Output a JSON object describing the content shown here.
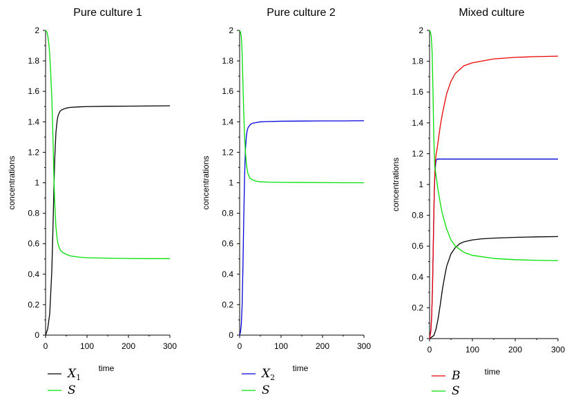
{
  "chart_data": [
    {
      "type": "line",
      "title": "Pure culture 1",
      "xlabel": "time",
      "ylabel": "concentrations",
      "xlim": [
        0,
        300
      ],
      "ylim": [
        0,
        2
      ],
      "xticks": [
        "0",
        "100",
        "200",
        "300"
      ],
      "yticks": [
        "0",
        "0.2",
        "0.4",
        "0.6",
        "0.8",
        "1",
        "1.2",
        "1.4",
        "1.6",
        "1.8",
        "2"
      ],
      "grid": false,
      "legend_position": "bottom-left",
      "series": [
        {
          "name": "X1",
          "legend_main": "X",
          "legend_sub": "1",
          "color": "#000000",
          "x": [
            0,
            5,
            10,
            15,
            18,
            20,
            22,
            25,
            28,
            30,
            35,
            40,
            50,
            60,
            80,
            100,
            150,
            200,
            250,
            300
          ],
          "y": [
            0.0,
            0.04,
            0.14,
            0.42,
            0.72,
            0.95,
            1.15,
            1.33,
            1.41,
            1.44,
            1.47,
            1.48,
            1.49,
            1.495,
            1.498,
            1.5,
            1.502,
            1.503,
            1.504,
            1.505
          ]
        },
        {
          "name": "S",
          "legend_main": "S",
          "legend_sub": "",
          "color": "#00e000",
          "x": [
            0,
            3,
            5,
            8,
            10,
            12,
            15,
            18,
            20,
            22,
            25,
            28,
            30,
            35,
            40,
            50,
            60,
            80,
            100,
            150,
            200,
            250,
            300
          ],
          "y": [
            2.0,
            1.99,
            1.97,
            1.91,
            1.84,
            1.74,
            1.56,
            1.28,
            1.05,
            0.87,
            0.71,
            0.63,
            0.6,
            0.56,
            0.545,
            0.53,
            0.52,
            0.512,
            0.508,
            0.505,
            0.503,
            0.502,
            0.502
          ]
        }
      ]
    },
    {
      "type": "line",
      "title": "Pure culture 2",
      "xlabel": "time",
      "ylabel": "concentrations",
      "xlim": [
        0,
        300
      ],
      "ylim": [
        0,
        2
      ],
      "xticks": [
        "0",
        "100",
        "200",
        "300"
      ],
      "yticks": [
        "0",
        "0.2",
        "0.4",
        "0.6",
        "0.8",
        "1",
        "1.2",
        "1.4",
        "1.6",
        "1.8",
        "2"
      ],
      "grid": false,
      "legend_position": "bottom-left",
      "series": [
        {
          "name": "X2",
          "legend_main": "X",
          "legend_sub": "2",
          "color": "#0000dd",
          "x": [
            0,
            2,
            4,
            6,
            8,
            10,
            12,
            14,
            16,
            18,
            20,
            25,
            30,
            40,
            50,
            70,
            100,
            150,
            200,
            250,
            300
          ],
          "y": [
            0.0,
            0.02,
            0.07,
            0.2,
            0.45,
            0.78,
            1.05,
            1.22,
            1.3,
            1.34,
            1.36,
            1.38,
            1.39,
            1.395,
            1.4,
            1.402,
            1.404,
            1.405,
            1.406,
            1.406,
            1.407
          ]
        },
        {
          "name": "S",
          "legend_main": "S",
          "legend_sub": "",
          "color": "#00e000",
          "x": [
            0,
            2,
            4,
            5,
            6,
            8,
            10,
            12,
            14,
            16,
            18,
            20,
            25,
            30,
            40,
            50,
            70,
            100,
            150,
            200,
            250,
            300
          ],
          "y": [
            2.0,
            1.99,
            1.96,
            1.92,
            1.85,
            1.65,
            1.45,
            1.3,
            1.2,
            1.13,
            1.09,
            1.06,
            1.03,
            1.02,
            1.01,
            1.006,
            1.004,
            1.003,
            1.002,
            1.001,
            1.0,
            1.0
          ]
        }
      ]
    },
    {
      "type": "line",
      "title": "Mixed culture",
      "xlabel": "time",
      "ylabel": "concentrations",
      "xlim": [
        0,
        300
      ],
      "ylim": [
        0,
        2
      ],
      "xticks": [
        "0",
        "100",
        "200",
        "300"
      ],
      "yticks": [
        "0",
        "0.2",
        "0.4",
        "0.6",
        "0.8",
        "1",
        "1.2",
        "1.4",
        "1.6",
        "1.8",
        "2"
      ],
      "grid": false,
      "legend_position": "bottom-left",
      "series": [
        {
          "name": "",
          "legend_main": "",
          "legend_sub": "",
          "color": "#0000dd",
          "x": [
            0,
            3,
            5,
            7,
            9,
            11,
            13,
            15,
            18,
            20,
            30,
            50,
            100,
            150,
            200,
            250,
            300
          ],
          "y": [
            0.0,
            0.05,
            0.15,
            0.35,
            0.65,
            0.95,
            1.1,
            1.155,
            1.165,
            1.165,
            1.165,
            1.165,
            1.165,
            1.165,
            1.165,
            1.165,
            1.165
          ]
        },
        {
          "name": "",
          "legend_main": "",
          "legend_sub": "",
          "color": "#000000",
          "x": [
            0,
            10,
            15,
            20,
            25,
            30,
            35,
            40,
            50,
            60,
            70,
            80,
            100,
            120,
            150,
            200,
            250,
            300
          ],
          "y": [
            0.0,
            0.02,
            0.06,
            0.13,
            0.22,
            0.32,
            0.4,
            0.47,
            0.55,
            0.59,
            0.615,
            0.628,
            0.64,
            0.647,
            0.652,
            0.657,
            0.66,
            0.662
          ]
        },
        {
          "name": "B",
          "legend_main": "B",
          "legend_sub": "",
          "color": "#ee0000",
          "x": [
            0,
            3,
            5,
            7,
            9,
            11,
            13,
            15,
            18,
            20,
            25,
            30,
            40,
            50,
            60,
            80,
            100,
            150,
            200,
            250,
            300
          ],
          "y": [
            0.0,
            0.05,
            0.15,
            0.35,
            0.66,
            0.96,
            1.13,
            1.19,
            1.24,
            1.28,
            1.38,
            1.46,
            1.59,
            1.67,
            1.72,
            1.77,
            1.79,
            1.815,
            1.825,
            1.83,
            1.833
          ]
        },
        {
          "name": "S",
          "legend_main": "S",
          "legend_sub": "",
          "color": "#00e000",
          "x": [
            0,
            2,
            4,
            6,
            8,
            10,
            12,
            14,
            16,
            18,
            20,
            25,
            30,
            40,
            50,
            60,
            80,
            100,
            150,
            200,
            250,
            300
          ],
          "y": [
            2.0,
            1.99,
            1.96,
            1.86,
            1.6,
            1.3,
            1.12,
            1.08,
            1.04,
            1.0,
            0.96,
            0.88,
            0.81,
            0.71,
            0.64,
            0.6,
            0.56,
            0.54,
            0.52,
            0.512,
            0.508,
            0.506
          ]
        }
      ]
    }
  ]
}
